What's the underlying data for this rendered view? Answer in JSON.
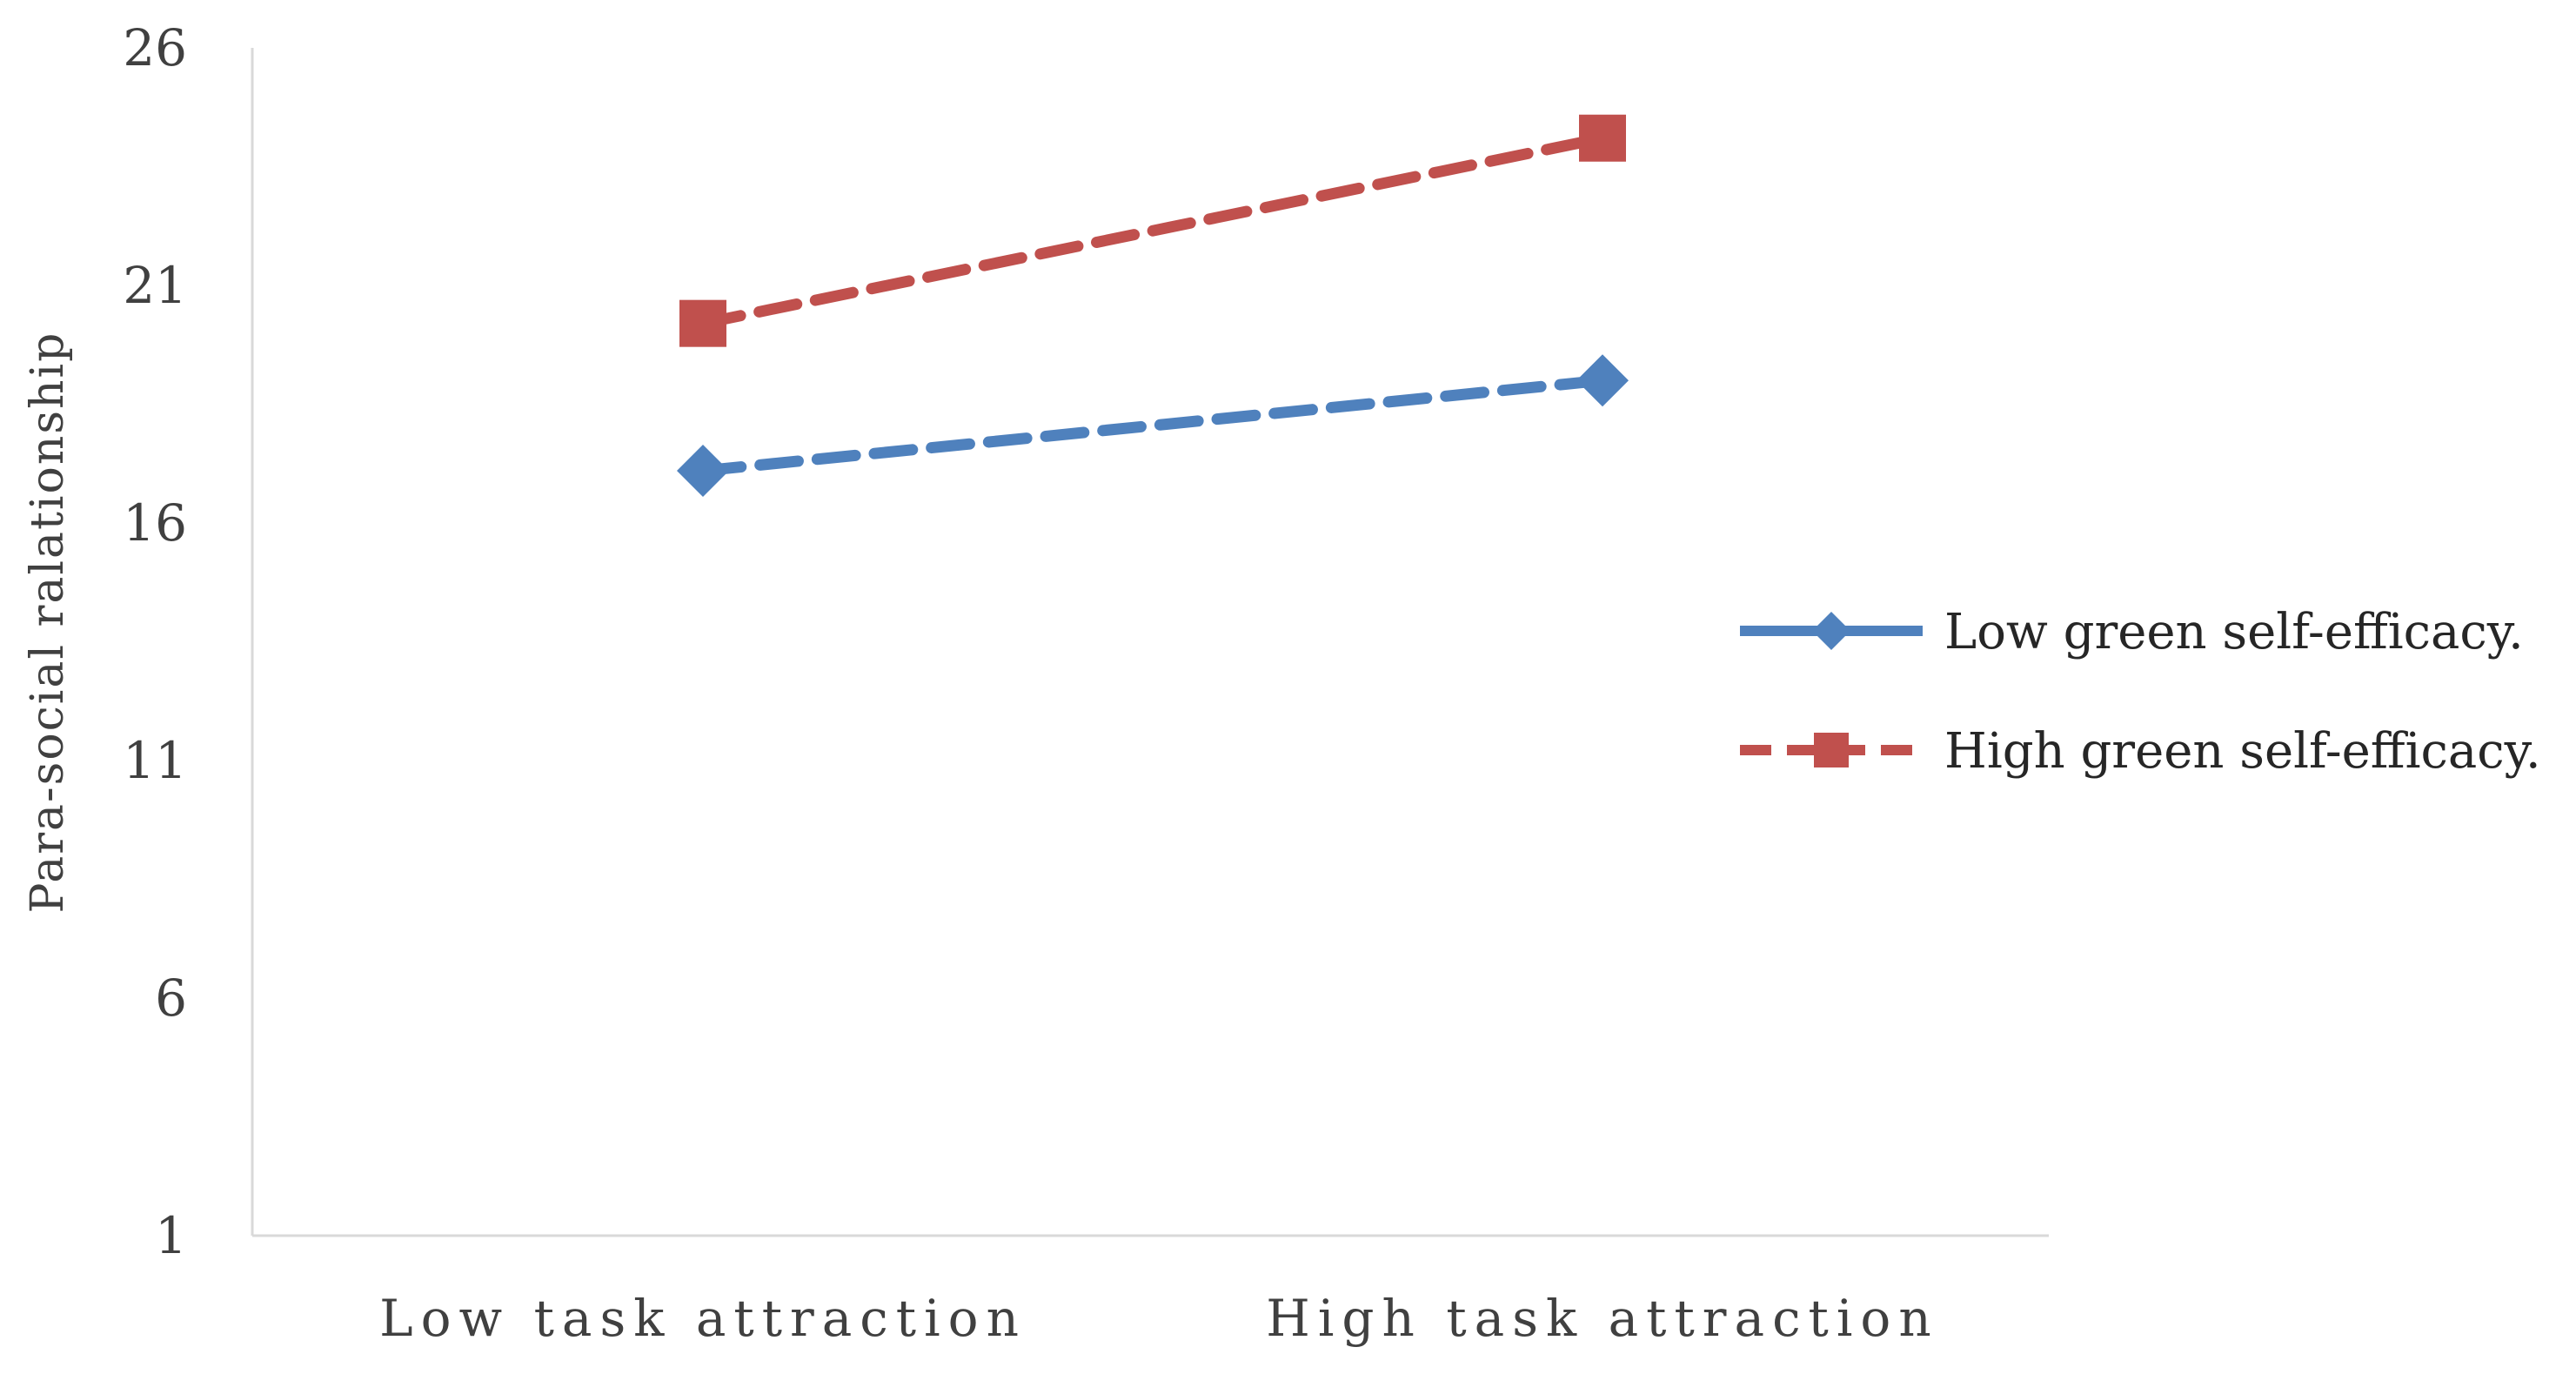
{
  "chart_data": {
    "type": "line",
    "title": "",
    "xlabel": "",
    "ylabel": "Para-social ralationship",
    "categories": [
      "Low task attraction",
      "High task attraction"
    ],
    "ylim": [
      1,
      26
    ],
    "yticks": [
      1,
      6,
      11,
      16,
      21,
      26
    ],
    "grid": false,
    "legend_position": "right",
    "series": [
      {
        "name": "Low green self-efficacy.",
        "values": [
          17.1,
          19.0
        ],
        "color": "#4f81bd",
        "marker": "diamond",
        "plot_line_style": "dashed",
        "legend_line_style": "solid"
      },
      {
        "name": "High green self-efficacy.",
        "values": [
          20.2,
          24.1
        ],
        "color": "#c0504d",
        "marker": "square",
        "plot_line_style": "dashed",
        "legend_line_style": "dashed"
      }
    ],
    "axis_color": "#d9d9d9",
    "text_color": "#404040"
  }
}
